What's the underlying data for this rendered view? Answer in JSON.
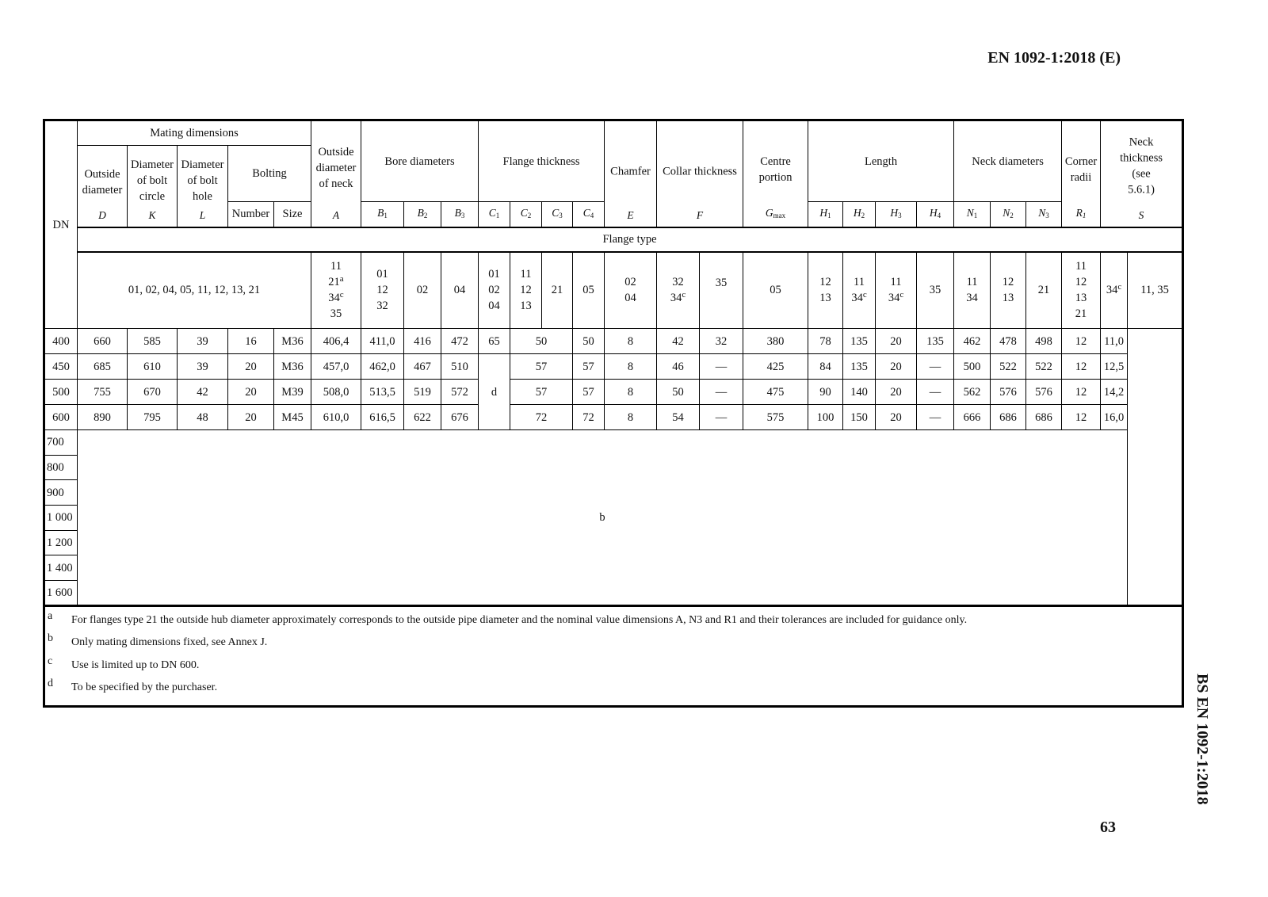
{
  "page_header": "EN 1092-1:2018 (E)",
  "page_number": "63",
  "side_label": "BS EN 1092-1:2018",
  "table": {
    "dn": "DN",
    "mating_dimensions": "Mating dimensions",
    "outside_diameter": "Outside diameter",
    "bolt_circle": "Diameter of bolt circle",
    "bolt_hole": "Diameter of bolt hole",
    "bolting": "Bolting",
    "number": "Number",
    "size": "Size",
    "neck_outside_diameter": "Outside diameter of neck",
    "bore_diameters": "Bore diameters",
    "flange_thickness": "Flange thickness",
    "chamfer": "Chamfer",
    "collar_thickness": "Collar thickness",
    "centre_portion": "Centre portion",
    "length": "Length",
    "neck_diameters": "Neck diameters",
    "corner_radii": "Corner radii",
    "neck_thickness": "Neck thickness (see 5.6.1)",
    "symbols": {
      "D": "D",
      "K": "K",
      "L": "L",
      "A": "A",
      "B1": "B",
      "B2": "B",
      "B3": "B",
      "C1": "C",
      "C2": "C",
      "C3": "C",
      "C4": "C",
      "E": "E",
      "F": "F",
      "G": "G",
      "H1": "H",
      "H2": "H",
      "H3": "H",
      "H4": "H",
      "N1": "N",
      "N2": "N",
      "N3": "N",
      "R1": "R",
      "S": "S"
    },
    "subscripts": {
      "B1": "1",
      "B2": "2",
      "B3": "3",
      "C1": "1",
      "C2": "2",
      "C3": "3",
      "C4": "4",
      "G": "max",
      "H1": "1",
      "H2": "2",
      "H3": "3",
      "H4": "4",
      "N1": "1",
      "N2": "2",
      "N3": "3",
      "R1": "1"
    },
    "flange_type": "Flange type",
    "types": {
      "mating": [
        [
          "01, 02, 04, 05, 11, 12, 13, 21"
        ]
      ],
      "A": [
        [
          "11"
        ],
        [
          "21",
          "a"
        ],
        [
          "34",
          "c"
        ],
        [
          "35"
        ]
      ],
      "B1": [
        [
          "01"
        ],
        [
          "12"
        ],
        [
          "32"
        ]
      ],
      "B2": [
        [
          "02"
        ]
      ],
      "B3": [
        [
          "04"
        ]
      ],
      "C1": [
        [
          "01"
        ],
        [
          "02"
        ],
        [
          "04"
        ]
      ],
      "C2": [
        [
          "11"
        ],
        [
          "12"
        ],
        [
          "13"
        ]
      ],
      "C3": [
        [
          "21"
        ]
      ],
      "C4": [
        [
          "05"
        ]
      ],
      "E": [
        [
          "02"
        ],
        [
          "04"
        ]
      ],
      "F1": [
        [
          "32"
        ],
        [
          "34",
          "c"
        ]
      ],
      "F2": [
        [
          "35"
        ]
      ],
      "G": [
        [
          "05"
        ]
      ],
      "H1": [
        [
          "12"
        ],
        [
          "13"
        ]
      ],
      "H2": [
        [
          "11"
        ],
        [
          "34",
          "c"
        ]
      ],
      "H3": [
        [
          "11"
        ],
        [
          "34",
          "c"
        ]
      ],
      "H4": [
        [
          "35"
        ]
      ],
      "N1": [
        [
          "11"
        ],
        [
          "34"
        ]
      ],
      "N2": [
        [
          "12"
        ],
        [
          "13"
        ]
      ],
      "N3": [
        [
          "21"
        ]
      ],
      "R1": [
        [
          "11"
        ],
        [
          "12"
        ],
        [
          "13"
        ],
        [
          "21"
        ]
      ],
      "S1": [
        [
          "34",
          "c"
        ]
      ],
      "S2": [
        [
          "11, 35"
        ]
      ]
    },
    "rows": [
      {
        "dn": "400",
        "cells": [
          "660",
          "585",
          "39",
          "16",
          "M36",
          "406,4",
          "411,0",
          "416",
          "472",
          "65",
          "50",
          "50",
          "8",
          "42",
          "32",
          "380",
          "78",
          "135",
          "20",
          "135",
          "462",
          "478",
          "498",
          "12",
          "11,0"
        ]
      },
      {
        "dn": "450",
        "cells": [
          "685",
          "610",
          "39",
          "20",
          "M36",
          "457,0",
          "462,0",
          "467",
          "510",
          "d",
          "57",
          "57",
          "8",
          "46",
          "—",
          "425",
          "84",
          "135",
          "20",
          "—",
          "500",
          "522",
          "522",
          "12",
          "12,5"
        ]
      },
      {
        "dn": "500",
        "cells": [
          "755",
          "670",
          "42",
          "20",
          "M39",
          "508,0",
          "513,5",
          "519",
          "572",
          null,
          "57",
          "57",
          "8",
          "50",
          "—",
          "475",
          "90",
          "140",
          "20",
          "—",
          "562",
          "576",
          "576",
          "12",
          "14,2"
        ]
      },
      {
        "dn": "600",
        "cells": [
          "890",
          "795",
          "48",
          "20",
          "M45",
          "610,0",
          "616,5",
          "622",
          "676",
          null,
          "72",
          "72",
          "8",
          "54",
          "—",
          "575",
          "100",
          "150",
          "20",
          "—",
          "666",
          "686",
          "686",
          "12",
          "16,0"
        ]
      }
    ],
    "empty_rows": [
      "700",
      "800",
      "900",
      "1 000",
      "1 200",
      "1 400",
      "1 600"
    ],
    "empty_note": "b",
    "footnotes": [
      {
        "key": "a",
        "text": "For flanges type 21 the outside hub diameter approximately corresponds to the outside pipe diameter and the nominal value dimensions A, N3 and R1 and their tolerances are included for guidance only."
      },
      {
        "key": "b",
        "text": "Only mating dimensions fixed, see Annex J."
      },
      {
        "key": "c",
        "text": "Use is limited up to DN 600."
      },
      {
        "key": "d",
        "text": "To be specified by the purchaser."
      }
    ]
  }
}
